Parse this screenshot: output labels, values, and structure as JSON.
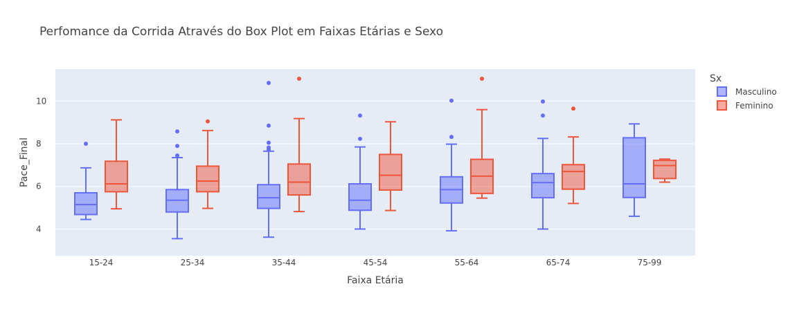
{
  "chart_data": {
    "type": "box",
    "title": "Perfomance da Corrida Através do Box Plot em Faixas Etárias e Sexo",
    "xlabel": "Faixa Etária",
    "ylabel": "Pace_Final",
    "categories": [
      "15-24",
      "25-34",
      "35-44",
      "45-54",
      "55-64",
      "65-74",
      "75-99"
    ],
    "ylim": [
      2.75,
      11.5
    ],
    "yticks": [
      4,
      6,
      8,
      10
    ],
    "grid": true,
    "legend": {
      "title": "Sx",
      "position": "top-right"
    },
    "series": [
      {
        "name": "Masculino",
        "color": "#636efa",
        "boxes": [
          {
            "category": "15-24",
            "min": 4.45,
            "q1": 4.68,
            "median": 5.15,
            "q3": 5.7,
            "max": 6.87,
            "outliers": [
              8.0
            ]
          },
          {
            "category": "25-34",
            "min": 3.55,
            "q1": 4.8,
            "median": 5.35,
            "q3": 5.85,
            "max": 7.35,
            "outliers": [
              7.45,
              7.9,
              8.58
            ]
          },
          {
            "category": "35-44",
            "min": 3.62,
            "q1": 4.97,
            "median": 5.47,
            "q3": 6.08,
            "max": 7.65,
            "outliers": [
              7.72,
              7.82,
              8.05,
              8.85,
              10.85
            ]
          },
          {
            "category": "45-54",
            "min": 4.0,
            "q1": 4.88,
            "median": 5.35,
            "q3": 6.12,
            "max": 7.85,
            "outliers": [
              8.23,
              9.32
            ]
          },
          {
            "category": "55-64",
            "min": 3.92,
            "q1": 5.22,
            "median": 5.85,
            "q3": 6.45,
            "max": 7.98,
            "outliers": [
              8.32,
              10.02
            ]
          },
          {
            "category": "65-74",
            "min": 4.0,
            "q1": 5.47,
            "median": 6.18,
            "q3": 6.6,
            "max": 8.25,
            "outliers": [
              9.32,
              9.98
            ]
          },
          {
            "category": "75-99",
            "min": 4.6,
            "q1": 5.48,
            "median": 6.12,
            "q3": 8.28,
            "max": 8.93,
            "outliers": []
          }
        ]
      },
      {
        "name": "Feminino",
        "color": "#ef553b",
        "boxes": [
          {
            "category": "15-24",
            "min": 4.95,
            "q1": 5.75,
            "median": 6.12,
            "q3": 7.18,
            "max": 9.12,
            "outliers": []
          },
          {
            "category": "25-34",
            "min": 4.97,
            "q1": 5.75,
            "median": 6.25,
            "q3": 6.95,
            "max": 8.62,
            "outliers": [
              9.05
            ]
          },
          {
            "category": "35-44",
            "min": 4.82,
            "q1": 5.6,
            "median": 6.2,
            "q3": 7.05,
            "max": 9.18,
            "outliers": [
              11.05
            ]
          },
          {
            "category": "45-54",
            "min": 4.87,
            "q1": 5.83,
            "median": 6.52,
            "q3": 7.5,
            "max": 9.03,
            "outliers": []
          },
          {
            "category": "55-64",
            "min": 5.45,
            "q1": 5.67,
            "median": 6.48,
            "q3": 7.27,
            "max": 9.6,
            "outliers": [
              11.05
            ]
          },
          {
            "category": "65-74",
            "min": 5.2,
            "q1": 5.87,
            "median": 6.7,
            "q3": 7.02,
            "max": 8.32,
            "outliers": [
              9.65
            ]
          },
          {
            "category": "75-99",
            "min": 6.2,
            "q1": 6.37,
            "median": 6.98,
            "q3": 7.22,
            "max": 7.28,
            "outliers": []
          }
        ]
      }
    ]
  }
}
